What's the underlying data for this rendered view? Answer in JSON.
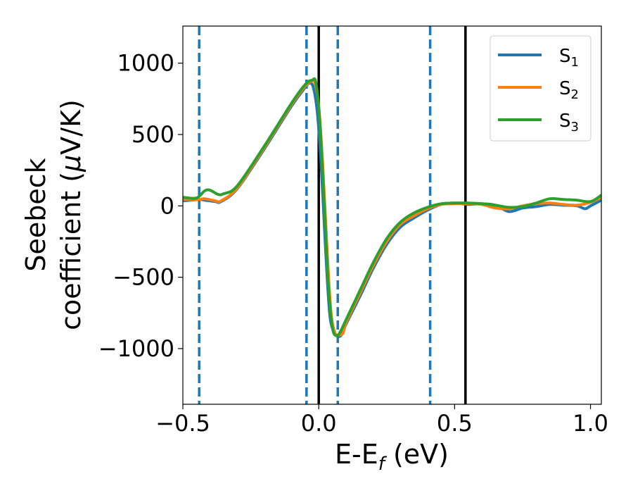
{
  "chart_data": {
    "type": "line",
    "xlabel": {
      "main": "E-E",
      "sub": "f",
      "unit": " (eV)"
    },
    "ylabel": {
      "line1": "Seebeck",
      "line2_pre": "coefficient  (",
      "line2_mu": "μ",
      "line2_post": "V/K)"
    },
    "xlim": [
      -0.5,
      1.04
    ],
    "ylim": [
      -1390,
      1260
    ],
    "xticks": [
      {
        "value": -0.5,
        "label": "−0.5"
      },
      {
        "value": 0.0,
        "label": "0.0"
      },
      {
        "value": 0.5,
        "label": "0.5"
      },
      {
        "value": 1.0,
        "label": "1.0"
      }
    ],
    "yticks": [
      {
        "value": 1000,
        "label": "1000"
      },
      {
        "value": 500,
        "label": "500"
      },
      {
        "value": 0,
        "label": "0"
      },
      {
        "value": -500,
        "label": "−500"
      },
      {
        "value": -1000,
        "label": "−1000"
      }
    ],
    "grid": false,
    "legend_position": "top-right",
    "vlines": [
      {
        "x": -0.44,
        "style": "dashed",
        "color": "#1f77b4"
      },
      {
        "x": -0.045,
        "style": "dashed",
        "color": "#1f77b4"
      },
      {
        "x": 0.07,
        "style": "dashed",
        "color": "#1f77b4"
      },
      {
        "x": 0.41,
        "style": "dashed",
        "color": "#1f77b4"
      },
      {
        "x": 0.0,
        "style": "solid",
        "color": "#000000"
      },
      {
        "x": 0.54,
        "style": "solid",
        "color": "#000000"
      }
    ],
    "series": [
      {
        "name": "S",
        "sub": "1",
        "color": "#1f77b4",
        "x": [
          -0.5,
          -0.44,
          -0.42,
          -0.38,
          -0.36,
          -0.3,
          -0.2,
          -0.1,
          -0.05,
          -0.035,
          -0.02,
          -0.005,
          0.01,
          0.025,
          0.04,
          0.055,
          0.07,
          0.085,
          0.1,
          0.15,
          0.2,
          0.25,
          0.3,
          0.35,
          0.4,
          0.45,
          0.5,
          0.55,
          0.6,
          0.65,
          0.7,
          0.75,
          0.8,
          0.85,
          0.9,
          0.95,
          0.98,
          1.0,
          1.04
        ],
        "y": [
          35,
          45,
          40,
          30,
          30,
          120,
          400,
          700,
          830,
          860,
          830,
          650,
          250,
          -300,
          -750,
          -880,
          -915,
          -900,
          -830,
          -640,
          -440,
          -270,
          -150,
          -85,
          -30,
          10,
          20,
          10,
          15,
          5,
          -40,
          -15,
          -5,
          10,
          5,
          0,
          -20,
          0,
          40
        ]
      },
      {
        "name": "S",
        "sub": "2",
        "color": "#ff7f0e",
        "x": [
          -0.5,
          -0.44,
          -0.42,
          -0.38,
          -0.36,
          -0.3,
          -0.2,
          -0.1,
          -0.05,
          -0.03,
          -0.015,
          0.0,
          0.015,
          0.03,
          0.045,
          0.06,
          0.075,
          0.09,
          0.1,
          0.15,
          0.2,
          0.25,
          0.3,
          0.35,
          0.4,
          0.45,
          0.5,
          0.55,
          0.6,
          0.65,
          0.7,
          0.75,
          0.8,
          0.85,
          0.9,
          0.95,
          1.0,
          1.04
        ],
        "y": [
          45,
          45,
          50,
          35,
          35,
          125,
          410,
          710,
          840,
          870,
          865,
          700,
          280,
          -280,
          -740,
          -890,
          -905,
          -890,
          -820,
          -620,
          -420,
          -250,
          -130,
          -70,
          -20,
          10,
          15,
          15,
          10,
          -15,
          -20,
          0,
          15,
          20,
          10,
          5,
          25,
          60
        ]
      },
      {
        "name": "S",
        "sub": "3",
        "color": "#2ca02c",
        "x": [
          -0.5,
          -0.45,
          -0.42,
          -0.4,
          -0.37,
          -0.35,
          -0.3,
          -0.2,
          -0.1,
          -0.05,
          -0.025,
          -0.01,
          0.005,
          0.02,
          0.035,
          0.05,
          0.065,
          0.08,
          0.1,
          0.15,
          0.2,
          0.25,
          0.3,
          0.35,
          0.4,
          0.45,
          0.5,
          0.55,
          0.6,
          0.65,
          0.7,
          0.75,
          0.8,
          0.85,
          0.9,
          0.95,
          1.0,
          1.04
        ],
        "y": [
          60,
          55,
          105,
          110,
          80,
          85,
          140,
          420,
          720,
          850,
          880,
          860,
          560,
          20,
          -550,
          -850,
          -910,
          -880,
          -800,
          -600,
          -400,
          -230,
          -115,
          -50,
          -10,
          15,
          20,
          20,
          15,
          5,
          -10,
          -5,
          20,
          50,
          45,
          40,
          30,
          75
        ]
      }
    ]
  }
}
